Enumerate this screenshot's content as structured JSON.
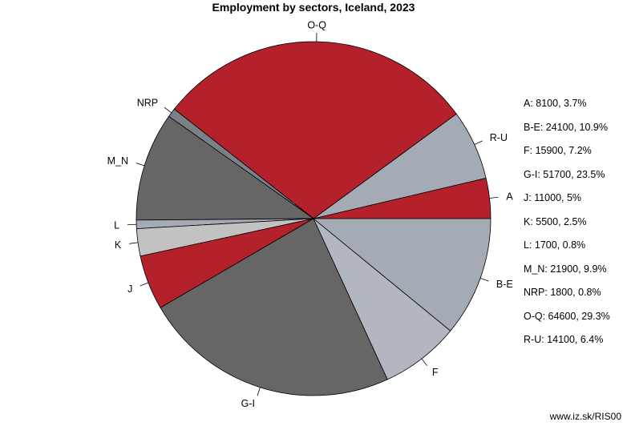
{
  "chart_data": {
    "type": "pie",
    "title": "Employment by sectors, Iceland, 2023",
    "slices": [
      {
        "label": "A",
        "value": 8100,
        "percent": "3.7%",
        "color": "#b5212a"
      },
      {
        "label": "R-U",
        "value": 14100,
        "percent": "6.4%",
        "color": "#a5abb5"
      },
      {
        "label": "O-Q",
        "value": 64600,
        "percent": "29.3%",
        "color": "#b5212a"
      },
      {
        "label": "NRP",
        "value": 1800,
        "percent": "0.8%",
        "color": "#7b8189"
      },
      {
        "label": "M_N",
        "value": 21900,
        "percent": "9.9%",
        "color": "#666666"
      },
      {
        "label": "L",
        "value": 1700,
        "percent": "0.8%",
        "color": "#a5abb5"
      },
      {
        "label": "K",
        "value": 5500,
        "percent": "2.5%",
        "color": "#c2c2c2"
      },
      {
        "label": "J",
        "value": 11000,
        "percent": "5%",
        "color": "#b5212a"
      },
      {
        "label": "G-I",
        "value": 51700,
        "percent": "23.5%",
        "color": "#666666"
      },
      {
        "label": "F",
        "value": 15900,
        "percent": "7.2%",
        "color": "#b2b6be"
      },
      {
        "label": "B-E",
        "value": 24100,
        "percent": "10.9%",
        "color": "#a5abb5"
      }
    ],
    "legend": [
      "A: 8100, 3.7%",
      "B-E: 24100, 10.9%",
      "F: 15900, 7.2%",
      "G-I: 51700, 23.5%",
      "J: 11000, 5%",
      "K: 5500, 2.5%",
      "L: 1700, 0.8%",
      "M_N: 21900, 9.9%",
      "NRP: 1800, 0.8%",
      "O-Q: 64600, 29.3%",
      "R-U: 14100, 6.4%"
    ],
    "legend_position": "right"
  },
  "footer": {
    "source": "www.iz.sk/RIS00"
  }
}
